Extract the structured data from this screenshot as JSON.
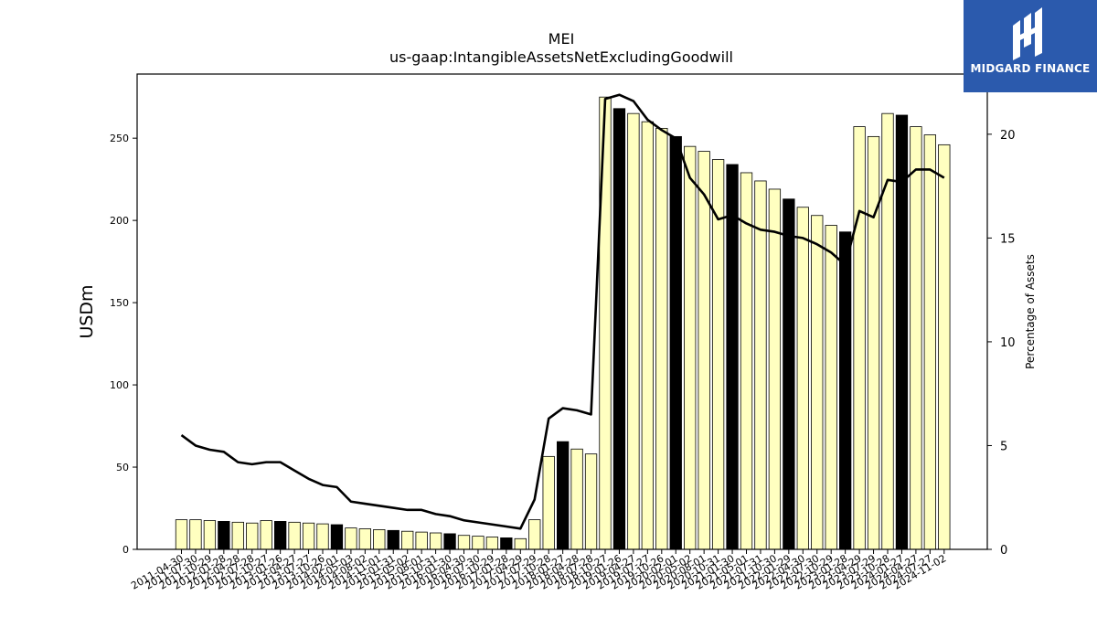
{
  "brand": {
    "name": "MIDGARD FINANCE",
    "background": "#2b5aad"
  },
  "chart_data": {
    "type": "bar",
    "title": "MEI",
    "subtitle": "us-gaap:IntangibleAssetsNetExcludingGoodwill",
    "ylabel": "USDm",
    "y2label": "Percentage of Assets",
    "ylim": [
      0,
      289
    ],
    "y2lim": [
      0,
      22.9
    ],
    "yticks": [
      0,
      50,
      100,
      150,
      200,
      250
    ],
    "y2ticks": [
      0,
      5,
      10,
      15,
      20
    ],
    "bar_color": "#ffffc0",
    "highlight_color": "#000000",
    "line_color": "#000000",
    "categories": [
      "2011-04-30",
      "2011-07-30",
      "2011-10-29",
      "2012-01-28",
      "2012-04-28",
      "2012-07-28",
      "2012-10-27",
      "2013-01-26",
      "2013-04-27",
      "2013-07-27",
      "2013-10-26",
      "2014-02-01",
      "2014-05-03",
      "2014-08-02",
      "2014-11-01",
      "2015-01-31",
      "2015-05-02",
      "2015-08-01",
      "2015-10-31",
      "2016-01-30",
      "2016-04-30",
      "2016-07-30",
      "2016-10-29",
      "2017-01-28",
      "2017-04-29",
      "2017-07-29",
      "2017-10-28",
      "2018-01-27",
      "2018-04-28",
      "2018-07-28",
      "2018-10-27",
      "2019-01-26",
      "2019-04-27",
      "2019-07-27",
      "2019-10-26",
      "2020-02-01",
      "2020-05-02",
      "2020-08-01",
      "2020-10-31",
      "2021-01-30",
      "2021-05-01",
      "2021-07-31",
      "2021-10-30",
      "2022-01-29",
      "2022-04-30",
      "2022-07-30",
      "2022-10-29",
      "2023-01-28",
      "2023-04-29",
      "2023-07-29",
      "2023-10-28",
      "2024-01-27",
      "2024-04-27",
      "2024-07-27",
      "2024-11-02"
    ],
    "values": [
      18,
      18,
      17.5,
      17,
      16.5,
      16,
      17.5,
      17,
      16.5,
      16,
      15.5,
      15,
      13,
      12.5,
      12,
      11.5,
      11,
      10.5,
      10,
      9.5,
      8.5,
      8,
      7.5,
      7,
      6.5,
      18,
      56.5,
      65.5,
      61,
      58,
      275,
      268,
      265,
      260,
      256,
      251,
      245,
      242,
      237,
      234,
      229,
      224,
      219,
      213,
      208,
      203,
      197,
      193,
      257,
      251,
      265,
      264,
      257,
      252,
      246
    ],
    "highlighted": [
      false,
      false,
      false,
      true,
      false,
      false,
      false,
      true,
      false,
      false,
      false,
      true,
      false,
      false,
      false,
      true,
      false,
      false,
      false,
      true,
      false,
      false,
      false,
      true,
      false,
      false,
      false,
      true,
      false,
      false,
      false,
      true,
      false,
      false,
      false,
      true,
      false,
      false,
      false,
      true,
      false,
      false,
      false,
      true,
      false,
      false,
      false,
      true,
      false,
      false,
      false,
      true,
      false,
      false,
      false
    ],
    "line_values": [
      5.5,
      5.0,
      4.8,
      4.7,
      4.2,
      4.1,
      4.2,
      4.2,
      3.8,
      3.4,
      3.1,
      3.0,
      2.3,
      2.2,
      2.1,
      2.0,
      1.9,
      1.9,
      1.7,
      1.6,
      1.4,
      1.3,
      1.2,
      1.1,
      1.0,
      2.4,
      6.3,
      6.8,
      6.7,
      6.5,
      21.7,
      21.9,
      21.6,
      20.7,
      20.2,
      19.8,
      17.9,
      17.1,
      15.9,
      16.1,
      15.7,
      15.4,
      15.3,
      15.1,
      15.0,
      14.7,
      14.3,
      13.7,
      16.3,
      16.0,
      17.8,
      17.7,
      18.3,
      18.3,
      17.9
    ]
  }
}
